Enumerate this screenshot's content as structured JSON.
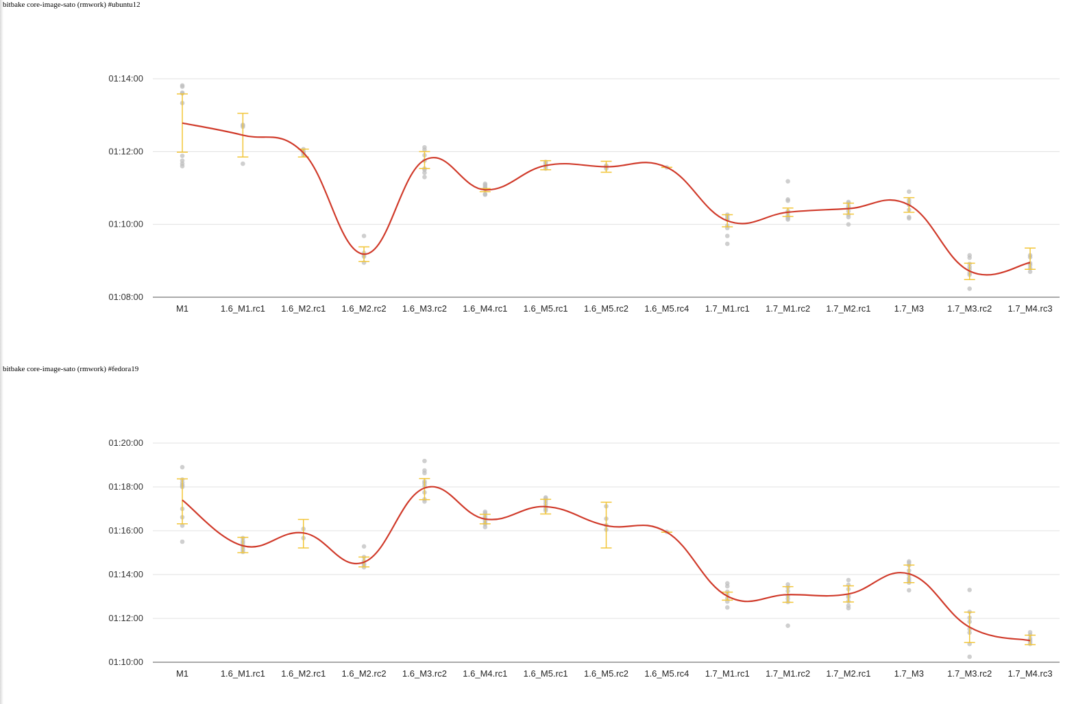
{
  "charts": [
    {
      "title": "bitbake core-image-sato (rmwork) #ubuntu12",
      "y_ticks": [
        "01:08:00",
        "01:10:00",
        "01:12:00",
        "01:14:00"
      ]
    },
    {
      "title": "bitbake core-image-sato (rmwork) #fedora19",
      "y_ticks": [
        "01:10:00",
        "01:12:00",
        "01:14:00",
        "01:16:00",
        "01:18:00",
        "01:20:00"
      ]
    }
  ],
  "colors": {
    "line": "#d03a2a",
    "error_bar": "#f2c536",
    "points": "#bfbfbf",
    "grid": "#e0e0e0",
    "axis": "#555555"
  },
  "chart_data": [
    {
      "type": "line",
      "title": "bitbake core-image-sato (rmwork) #ubuntu12",
      "xlabel": "",
      "ylabel": "",
      "y_unit": "seconds",
      "ylim": [
        4080,
        4440
      ],
      "grid": true,
      "categories": [
        "M1",
        "1.6_M1.rc1",
        "1.6_M2.rc1",
        "1.6_M2.rc2",
        "1.6_M3.rc2",
        "1.6_M4.rc1",
        "1.6_M5.rc1",
        "1.6_M5.rc2",
        "1.6_M5.rc4",
        "1.7_M1.rc1",
        "1.7_M1.rc2",
        "1.7_M2.rc1",
        "1.7_M3",
        "1.7_M3.rc2",
        "1.7_M4.rc3"
      ],
      "series": [
        {
          "mean": [
            4367,
            4347,
            4318,
            4151,
            4306,
            4257,
            4297,
            4295,
            4294,
            4206,
            4220,
            4226,
            4232,
            4123,
            4137
          ],
          "error_low": [
            4319,
            4311,
            4311,
            4139,
            4292,
            4254,
            4290,
            4286,
            4294,
            4196,
            4213,
            4217,
            4220,
            4109,
            4126
          ],
          "error_high": [
            4415,
            4383,
            4324,
            4163,
            4320,
            4259,
            4305,
            4304,
            4294,
            4216,
            4227,
            4235,
            4244,
            4136,
            4161
          ],
          "points": [
            [
              4429,
              4427,
              4417,
              4416,
              4400,
              4313,
              4305,
              4300,
              4296
            ],
            [
              4364,
              4363,
              4361,
              4300
            ],
            [
              4324,
              4320,
              4318,
              4314
            ],
            [
              4181,
              4153,
              4149,
              4147,
              4137
            ],
            [
              4327,
              4323,
              4314,
              4305,
              4292,
              4290,
              4285,
              4278
            ],
            [
              4267,
              4265,
              4262,
              4260,
              4258,
              4250,
              4249
            ],
            [
              4303,
              4301,
              4298,
              4296,
              4292
            ],
            [
              4297,
              4295,
              4292
            ],
            [
              4294
            ],
            [
              4216,
              4214,
              4210,
              4208,
              4198,
              4194,
              4181,
              4168
            ],
            [
              4271,
              4241,
              4239,
              4222,
              4220,
              4215,
              4212,
              4210,
              4208
            ],
            [
              4237,
              4235,
              4230,
              4228,
              4222,
              4216,
              4212,
              4200
            ],
            [
              4254,
              4240,
              4236,
              4232,
              4224,
              4212,
              4210
            ],
            [
              4149,
              4145,
              4135,
              4130,
              4126,
              4120,
              4117,
              4094
            ],
            [
              4149,
              4146,
              4136,
              4133,
              4128,
              4122
            ]
          ]
        }
      ]
    },
    {
      "type": "line",
      "title": "bitbake core-image-sato (rmwork) #fedora19",
      "xlabel": "",
      "ylabel": "",
      "y_unit": "seconds",
      "ylim": [
        4200,
        4800
      ],
      "grid": true,
      "categories": [
        "M1",
        "1.6_M1.rc1",
        "1.6_M2.rc1",
        "1.6_M2.rc2",
        "1.6_M3.rc2",
        "1.6_M4.rc1",
        "1.6_M5.rc1",
        "1.6_M5.rc2",
        "1.6_M5.rc4",
        "1.7_M1.rc1",
        "1.7_M1.rc2",
        "1.7_M2.rc1",
        "1.7_M3",
        "1.7_M3.rc2",
        "1.7_M4.rc3"
      ],
      "series": [
        {
          "mean": [
            4644,
            4519,
            4554,
            4474,
            4677,
            4592,
            4626,
            4574,
            4556,
            4381,
            4385,
            4387,
            4442,
            4296,
            4259
          ],
          "error_low": [
            4579,
            4500,
            4513,
            4461,
            4645,
            4579,
            4606,
            4513,
            4556,
            4370,
            4364,
            4365,
            4418,
            4254,
            4248
          ],
          "error_high": [
            4702,
            4542,
            4591,
            4488,
            4703,
            4605,
            4646,
            4638,
            4556,
            4392,
            4407,
            4409,
            4466,
            4337,
            4274
          ],
          "points": [
            [
              4734,
              4700,
              4692,
              4686,
              4683,
              4680,
              4620,
              4597,
              4574,
              4530
            ],
            [
              4540,
              4532,
              4527,
              4520,
              4515,
              4508,
              4502
            ],
            [
              4565,
              4540
            ],
            [
              4517,
              4488,
              4477,
              4469,
              4466,
              4460
            ],
            [
              4751,
              4725,
              4718,
              4695,
              4690,
              4683,
              4665,
              4646,
              4640
            ],
            [
              4612,
              4608,
              4600,
              4595,
              4588,
              4582,
              4578,
              4570
            ],
            [
              4651,
              4648,
              4642,
              4635,
              4627,
              4620,
              4615
            ],
            [
              4627,
              4593,
              4575,
              4563
            ],
            [
              4557
            ],
            [
              4416,
              4408,
              4393,
              4385,
              4375,
              4366,
              4350
            ],
            [
              4413,
              4405,
              4395,
              4382,
              4374,
              4365,
              4300
            ],
            [
              4425,
              4412,
              4400,
              4382,
              4378,
              4367,
              4355,
              4348
            ],
            [
              4476,
              4472,
              4465,
              4451,
              4440,
              4430,
              4424,
              4418,
              4397
            ],
            [
              4398,
              4338,
              4322,
              4311,
              4291,
              4281,
              4250,
              4215
            ],
            [
              4282,
              4275,
              4265,
              4260,
              4255,
              4250
            ]
          ]
        }
      ]
    }
  ]
}
